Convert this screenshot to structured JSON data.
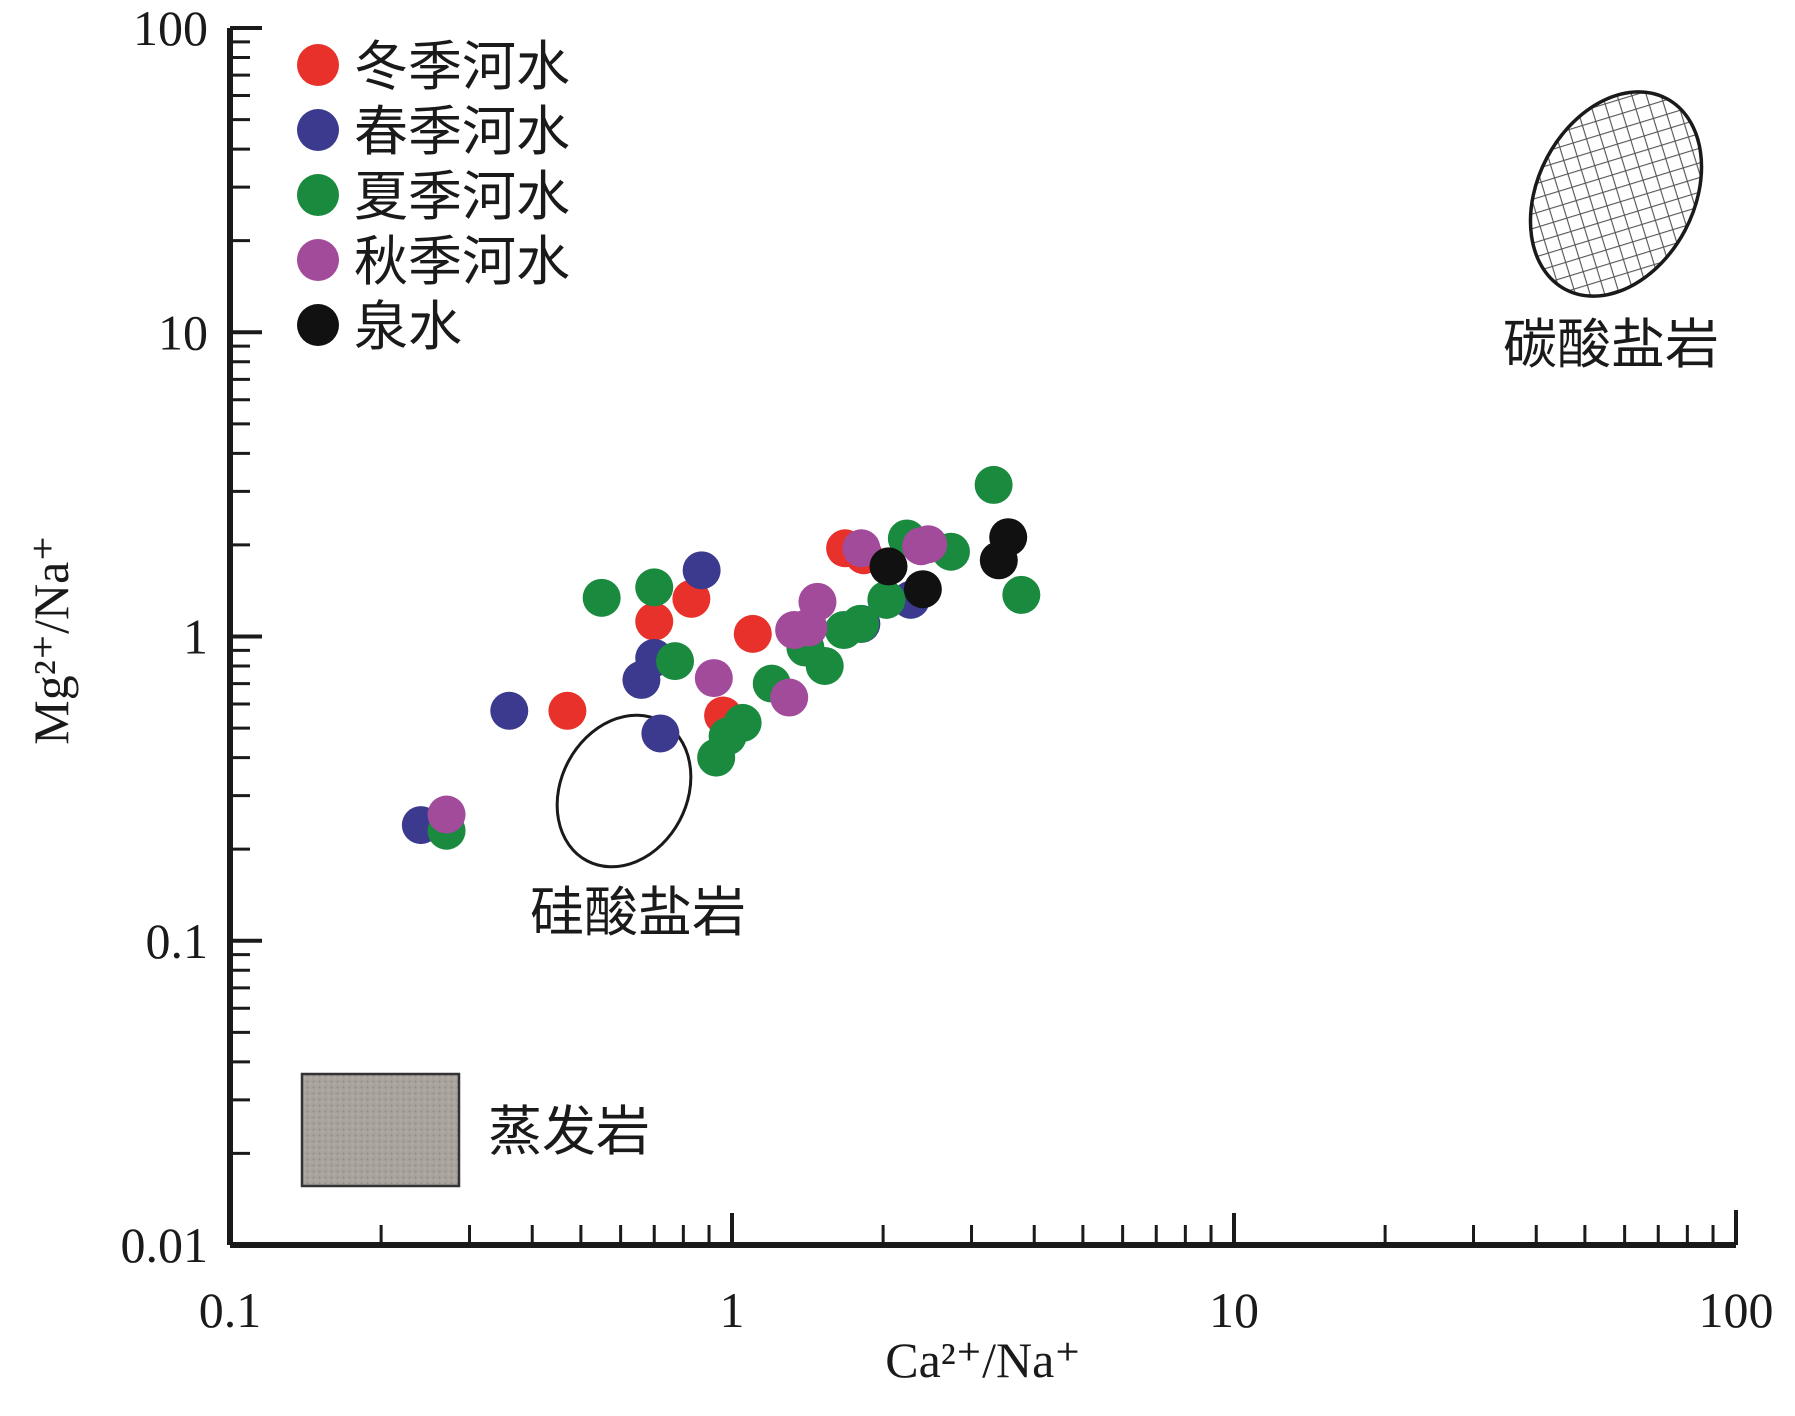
{
  "chart_data": {
    "type": "scatter",
    "xlabel": "Ca²⁺/Na⁺",
    "ylabel": "Mg²⁺/Na⁺",
    "xscale": "log",
    "yscale": "log",
    "xlim": [
      0.1,
      100
    ],
    "ylim": [
      0.01,
      100
    ],
    "x_ticks": [
      "0.1",
      "1",
      "10",
      "100"
    ],
    "y_ticks": [
      "0.01",
      "0.1",
      "1",
      "10",
      "100"
    ],
    "legend_position": "top-left",
    "grid": false,
    "series": [
      {
        "name": "冬季河水",
        "color": "#e8312b",
        "points": [
          [
            0.47,
            0.57
          ],
          [
            0.7,
            1.12
          ],
          [
            0.83,
            1.33
          ],
          [
            0.96,
            0.55
          ],
          [
            1.1,
            1.02
          ],
          [
            1.68,
            1.95
          ],
          [
            1.83,
            1.85
          ]
        ]
      },
      {
        "name": "春季河水",
        "color": "#3c3a8e",
        "points": [
          [
            0.24,
            0.24
          ],
          [
            0.36,
            0.57
          ],
          [
            0.66,
            0.72
          ],
          [
            0.7,
            0.85
          ],
          [
            0.72,
            0.48
          ],
          [
            0.87,
            1.65
          ],
          [
            1.81,
            1.1
          ],
          [
            2.27,
            1.32
          ]
        ]
      },
      {
        "name": "夏季河水",
        "color": "#1a8a3f",
        "points": [
          [
            0.27,
            0.23
          ],
          [
            0.55,
            1.34
          ],
          [
            0.7,
            1.45
          ],
          [
            0.77,
            0.83
          ],
          [
            0.93,
            0.4
          ],
          [
            0.98,
            0.47
          ],
          [
            1.05,
            0.52
          ],
          [
            1.2,
            0.7
          ],
          [
            1.4,
            0.92
          ],
          [
            1.53,
            0.8
          ],
          [
            1.67,
            1.05
          ],
          [
            1.8,
            1.1
          ],
          [
            2.03,
            1.32
          ],
          [
            2.23,
            2.1
          ],
          [
            2.73,
            1.9
          ],
          [
            3.32,
            3.15
          ],
          [
            3.77,
            1.37
          ]
        ]
      },
      {
        "name": "秋季河水",
        "color": "#a24b9b",
        "points": [
          [
            0.27,
            0.26
          ],
          [
            0.92,
            0.73
          ],
          [
            1.3,
            0.63
          ],
          [
            1.33,
            1.05
          ],
          [
            1.42,
            1.07
          ],
          [
            1.48,
            1.3
          ],
          [
            1.81,
            1.95
          ],
          [
            2.38,
            1.98
          ],
          [
            2.46,
            2.01
          ]
        ]
      },
      {
        "name": "泉水",
        "color": "#111111",
        "points": [
          [
            2.05,
            1.7
          ],
          [
            2.4,
            1.43
          ],
          [
            3.4,
            1.78
          ],
          [
            3.55,
            2.12
          ]
        ]
      }
    ],
    "regions": [
      {
        "name": "碳酸盐岩",
        "shape": "hatched ellipse"
      },
      {
        "name": "硅酸盐岩",
        "shape": "outlined ellipse"
      },
      {
        "name": "蒸发岩",
        "shape": "gray rectangle"
      }
    ]
  }
}
